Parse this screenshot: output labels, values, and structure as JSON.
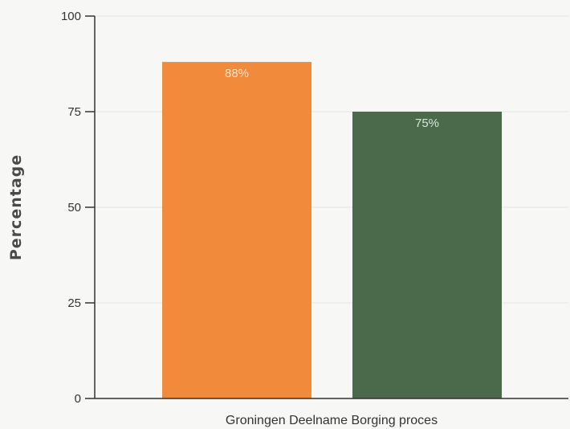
{
  "chart_data": {
    "type": "bar",
    "title": "",
    "xlabel": "Groningen Deelname Borging proces",
    "ylabel": "Percentage",
    "ylim": [
      0,
      100
    ],
    "yticks": [
      0,
      25,
      50,
      75,
      100
    ],
    "yticks_text": [
      "0",
      "25",
      "50",
      "75",
      "100"
    ],
    "grid": true,
    "categories": [
      "",
      ""
    ],
    "values": [
      88,
      75
    ],
    "value_labels": [
      "88%",
      "75%"
    ],
    "bar_colors": [
      "#f28a3c",
      "#4b6a4b"
    ],
    "bar_label_colors": [
      "#fbe2cf",
      "#d4e6d4"
    ],
    "axis_color": "#333333",
    "grid_color": "#e4e4e4"
  }
}
